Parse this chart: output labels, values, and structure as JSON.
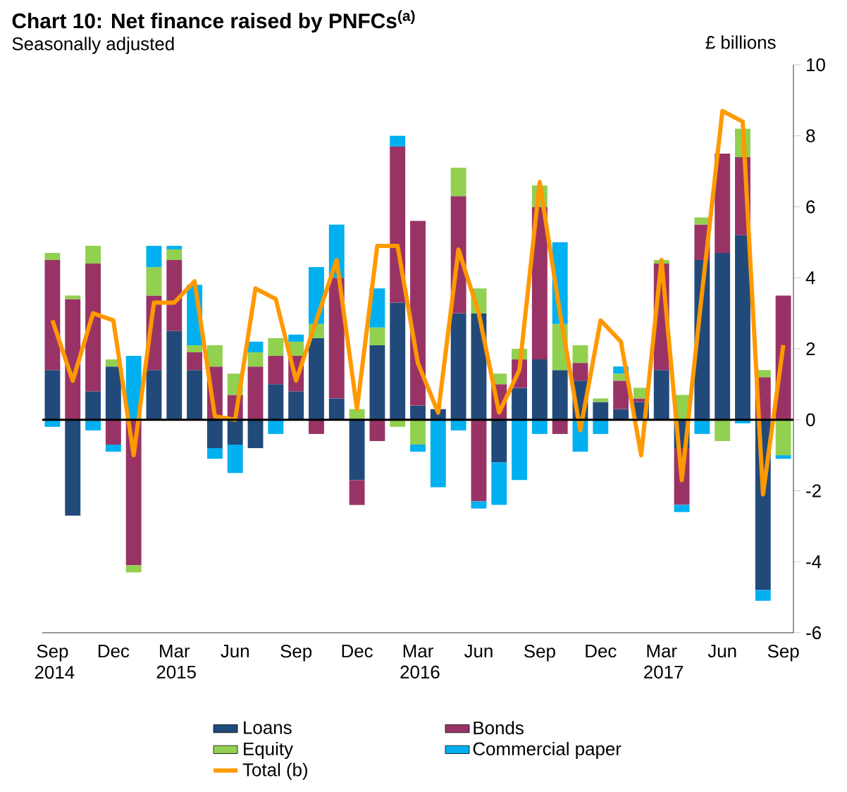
{
  "chart_data": {
    "type": "bar",
    "stacked": true,
    "title": "Chart 10: Net finance raised by PNFCs$^{(a)}$",
    "subtitle": "Seasonally adjusted",
    "ylabel": "£ billions",
    "categories": [
      "Sep 2014",
      null,
      null,
      "Dec",
      null,
      null,
      "Mar 2015",
      null,
      null,
      "Jun",
      null,
      null,
      "Sep",
      null,
      null,
      "Dec",
      null,
      null,
      "Mar 2016",
      null,
      null,
      "Jun",
      null,
      null,
      "Sep",
      null,
      null,
      "Dec",
      null,
      null,
      "Mar 2017",
      null,
      null,
      "Jun",
      null,
      null,
      "Sep"
    ],
    "series": [
      {
        "name": "Loans",
        "color": "#214a7b",
        "values": [
          1.4,
          -2.7,
          0.8,
          1.5,
          0,
          1.4,
          2.5,
          1.4,
          -0.8,
          -0.7,
          -0.8,
          1.0,
          0.8,
          2.3,
          0.6,
          -1.7,
          2.1,
          3.3,
          0.4,
          0.3,
          3.0,
          3.0,
          -1.2,
          0.9,
          1.7,
          1.4,
          1.1,
          0.5,
          0.3,
          0.5,
          1.4,
          -0.8,
          4.5,
          4.7,
          5.2,
          -4.8,
          0
        ]
      },
      {
        "name": "Bonds",
        "color": "#993366",
        "values": [
          3.1,
          3.4,
          3.6,
          -0.7,
          -4.1,
          2.1,
          2.0,
          0.5,
          1.5,
          0.7,
          1.5,
          0.8,
          1.0,
          -0.4,
          3.4,
          -0.7,
          -0.6,
          4.4,
          5.2,
          null,
          3.3,
          -2.3,
          1.0,
          0.8,
          4.3,
          -0.4,
          0.5,
          0,
          0.8,
          0.1,
          3.0,
          -1.6,
          1.0,
          2.8,
          2.2,
          1.2,
          3.5
        ]
      },
      {
        "name": "Equity",
        "color": "#92d050",
        "values": [
          0.2,
          0.1,
          0.5,
          0.2,
          -0.2,
          0.8,
          0.3,
          0.2,
          0.6,
          0.6,
          0.4,
          0.5,
          0.4,
          0.4,
          0,
          0.3,
          0.5,
          -0.2,
          -0.7,
          0,
          0.8,
          0.7,
          0.3,
          0.3,
          0.6,
          1.3,
          0.5,
          0.1,
          0.2,
          0.3,
          0.1,
          0.7,
          0.2,
          -0.6,
          0.8,
          0.2,
          -1.0
        ]
      },
      {
        "name": "Commercial paper",
        "color": "#00b0f0",
        "values": [
          -0.2,
          0,
          -0.3,
          -0.2,
          1.8,
          0.6,
          0.1,
          1.7,
          -0.3,
          -0.8,
          0.3,
          -0.4,
          0.2,
          1.6,
          1.5,
          0,
          1.1,
          0.3,
          -0.2,
          -1.9,
          -0.3,
          -0.2,
          -1.2,
          -1.7,
          -0.4,
          2.3,
          -0.9,
          -0.4,
          0.2,
          null,
          0,
          -0.2,
          -0.4,
          0,
          -0.1,
          -0.3,
          -0.1
        ]
      },
      {
        "name": "Total (b)",
        "type": "line",
        "color": "#ff9900",
        "values": [
          2.8,
          1.1,
          3.0,
          2.8,
          -1.0,
          3.3,
          3.3,
          3.9,
          0.1,
          0.0,
          3.7,
          3.4,
          1.1,
          2.8,
          4.5,
          0.3,
          4.9,
          4.9,
          1.6,
          0.2,
          4.8,
          3.0,
          0.2,
          1.4,
          6.7,
          3.0,
          -0.3,
          2.8,
          2.2,
          -1.0,
          4.5,
          -1.7,
          3.6,
          8.7,
          8.4,
          -2.1,
          2.1
        ]
      }
    ],
    "ylim": [
      -6,
      10
    ],
    "yticks": [
      -6,
      -4,
      -2,
      0,
      2,
      4,
      6,
      8,
      10
    ],
    "ref_lines": [
      {
        "axis": "y",
        "value": 0,
        "color": "#000000"
      }
    ],
    "legend": "bottom"
  }
}
